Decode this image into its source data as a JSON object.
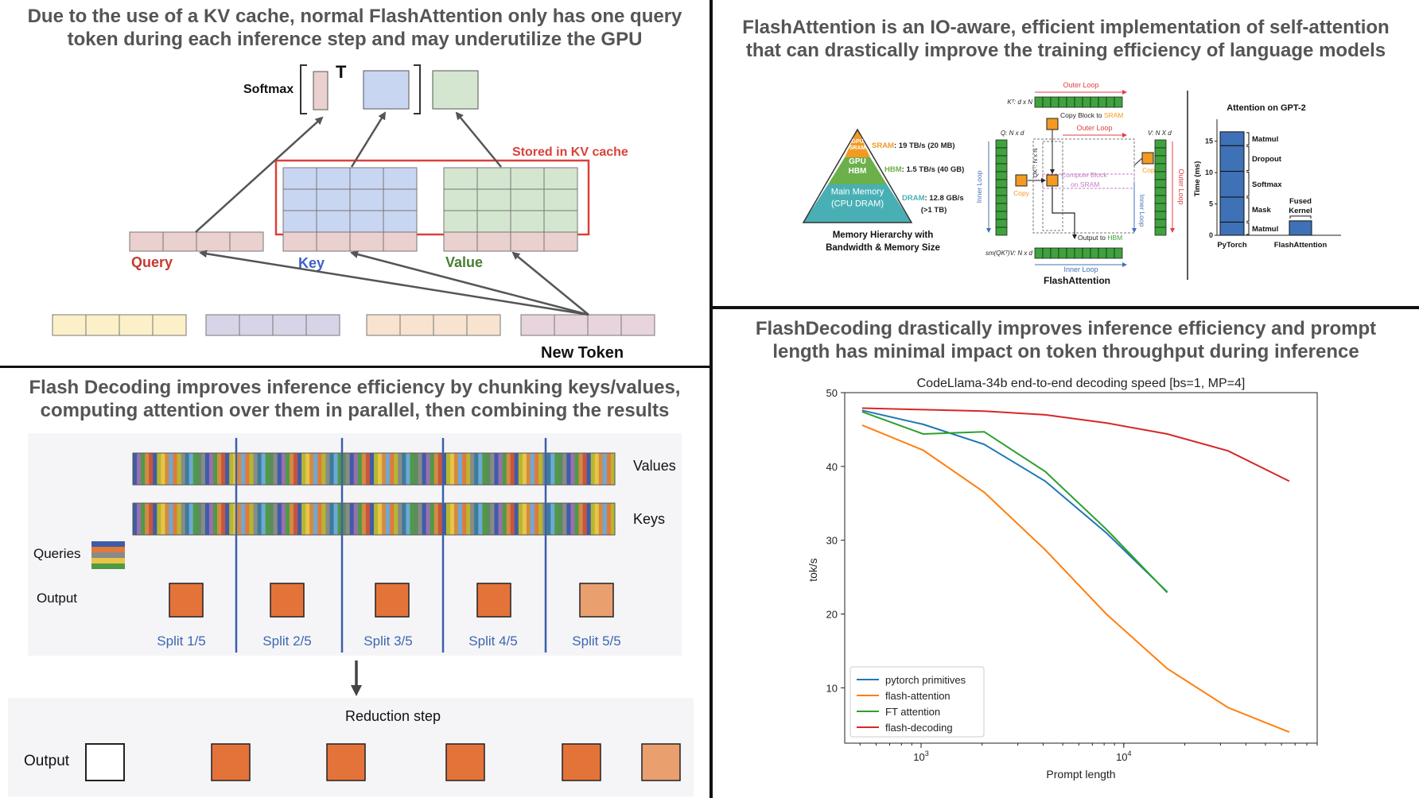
{
  "panels": {
    "kv_cache": {
      "title_line1": "Due to the use of a KV cache, normal FlashAttention only has one query",
      "title_line2": "token during each inference step and may underutilize the GPU",
      "softmax_label": "Softmax",
      "transpose_label": "T",
      "stored_label": "Stored in KV cache",
      "query_label": "Query",
      "key_label": "Key",
      "value_label": "Value",
      "new_token_label": "New Token",
      "colors": {
        "query": "#c53a2e",
        "key": "#3d62c4",
        "value": "#4a7d32",
        "cache_box": "#d9423a"
      }
    },
    "flash_attention": {
      "title_line1": "FlashAttention is an IO-aware, efficient implementation of self-attention",
      "title_line2": "that can drastically improve the training efficiency of language models",
      "pyramid": {
        "top_label": "GPU\nSRAM",
        "mid_label": "GPU\nHBM",
        "bottom_label": "Main Memory\n(CPU DRAM)",
        "sram_name": "SRAM",
        "sram_spec": ": 19 TB/s (20 MB)",
        "hbm_name": "HBM",
        "hbm_spec": ": 1.5 TB/s (40 GB)",
        "dram_name": "DRAM",
        "dram_spec": ": 12.8 GB/s",
        "dram_spec2": "(>1 TB)",
        "caption_line1": "Memory Hierarchy with",
        "caption_line2": "Bandwidth & Memory Size"
      },
      "algo": {
        "outer_loop": "Outer Loop",
        "inner_loop": "Inner Loop",
        "kt_label": "Kᵀ: d x N",
        "q_label": "Q: N x d",
        "v_label": "V: N X d",
        "qkt_label": "QKᵀ: N x N",
        "sm_label": "sm(QKᵀ)V: N x d",
        "copy_block": "Copy Block to ",
        "sram_word": "SRAM",
        "copy": "Copy",
        "compute_block": "Compute Block",
        "on_sram": "on SRAM",
        "output_to": "Output to ",
        "hbm_word": "HBM",
        "caption": "FlashAttention"
      },
      "gpt2_chart": {
        "title": "Attention on GPT-2",
        "ylabel": "Time (ms)",
        "yticks": [
          0,
          5,
          10,
          15
        ],
        "ylim": [
          0,
          18
        ],
        "categories": [
          "PyTorch",
          "FlashAttention"
        ],
        "pytorch_segments": [
          {
            "name": "Matmul",
            "value": 2.1
          },
          {
            "name": "Mask",
            "value": 4.0
          },
          {
            "name": "Softmax",
            "value": 4.1
          },
          {
            "name": "Dropout",
            "value": 4.1
          },
          {
            "name": "Matmul",
            "value": 2.2
          }
        ],
        "flash_value": 2.3,
        "fused_label_line1": "Fused",
        "fused_label_line2": "Kernel"
      },
      "colors": {
        "green": "#3ea33c",
        "orange": "#f29a21",
        "red": "#e04040",
        "blue": "#3f71b6",
        "sram": "#f29a21",
        "hbm": "#6bb04a",
        "dram": "#48b0b5"
      }
    },
    "flash_decoding": {
      "title_line1": "Flash Decoding improves inference efficiency by chunking keys/values,",
      "title_line2": "computing attention over them in parallel, then combining the results",
      "values_label": "Values",
      "keys_label": "Keys",
      "queries_label": "Queries",
      "output_label": "Output",
      "splits": [
        "Split 1/5",
        "Split 2/5",
        "Split 3/5",
        "Split 4/5",
        "Split 5/5"
      ],
      "reduction_label": "Reduction step",
      "output_label2": "Output",
      "colors": {
        "split_text": "#3d66b0",
        "orange": "#e4733a",
        "light_orange": "#eaa06e"
      }
    },
    "decoding_chart": {
      "title_line1": "FlashDecoding drastically improves inference efficiency and prompt",
      "title_line2": "length has minimal impact on token throughput during inference"
    }
  },
  "chart_data": {
    "type": "line",
    "title": "CodeLlama-34b end-to-end decoding speed [bs=1, MP=4]",
    "xlabel": "Prompt length",
    "ylabel": "tok/s",
    "xscale": "log",
    "xlim": [
      420,
      90000
    ],
    "ylim": [
      2.5,
      50
    ],
    "yticks": [
      10,
      20,
      30,
      40,
      50
    ],
    "xticks": [
      {
        "value": 1000,
        "base": "10",
        "exp": "3"
      },
      {
        "value": 10000,
        "base": "10",
        "exp": "4"
      }
    ],
    "legend": "lower-left",
    "series": [
      {
        "name": "pytorch primitives",
        "color": "#1f77b4",
        "x": [
          512,
          1024,
          2048,
          4096,
          8192,
          16384
        ],
        "y": [
          47.6,
          45.7,
          43.0,
          38.0,
          31.0,
          23.0
        ]
      },
      {
        "name": "flash-attention",
        "color": "#ff7f0e",
        "x": [
          512,
          1024,
          2048,
          4096,
          8192,
          16384,
          32768,
          65536
        ],
        "y": [
          45.6,
          42.2,
          36.5,
          28.7,
          20.0,
          12.6,
          7.3,
          4.0
        ]
      },
      {
        "name": "FT attention",
        "color": "#2ca02c",
        "x": [
          512,
          1024,
          2048,
          4096,
          8192,
          16384
        ],
        "y": [
          47.4,
          44.4,
          44.7,
          39.3,
          31.5,
          22.9
        ]
      },
      {
        "name": "flash-decoding",
        "color": "#d62728",
        "x": [
          512,
          1024,
          2048,
          4096,
          8192,
          16384,
          32768,
          65536
        ],
        "y": [
          47.9,
          47.7,
          47.5,
          47.0,
          45.9,
          44.4,
          42.1,
          38.0
        ]
      }
    ]
  }
}
